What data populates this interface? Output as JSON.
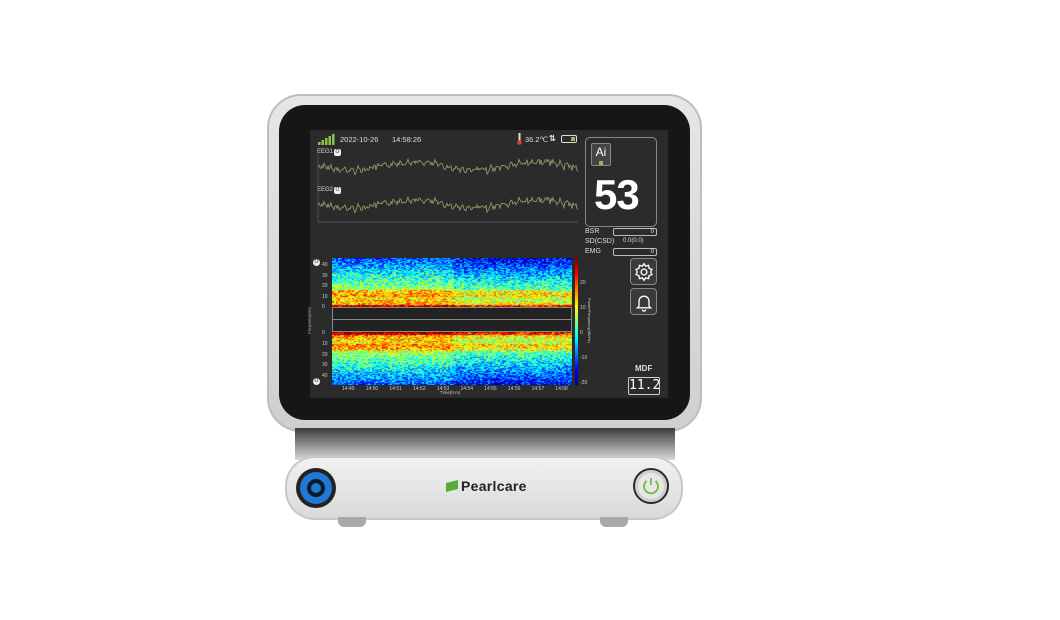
{
  "brand": {
    "name": "Pearlcare",
    "color": "#5aac3a"
  },
  "status_bar": {
    "date": "2022-10-26",
    "time": "14:58:26",
    "temperature": "36.2℃",
    "signal_bars": 5,
    "battery_icon": "battery-icon",
    "transfer_icon": "up-down-arrows-icon"
  },
  "eeg": {
    "channels": [
      {
        "label": "EEG1",
        "badge": "O"
      },
      {
        "label": "EEG2",
        "badge": "O"
      }
    ],
    "trace_color": "#8fa86a"
  },
  "index": {
    "badge": "Ai",
    "value": "53"
  },
  "params": [
    {
      "label": "BSR",
      "value": "0"
    },
    {
      "label": "SD(CSD)",
      "value": "0.0(0.0)"
    },
    {
      "label": "EMG",
      "value": "0"
    }
  ],
  "buttons": {
    "settings": "gear-icon",
    "alarm": "bell-icon"
  },
  "mdf": {
    "label": "MDF",
    "value": "11.2"
  },
  "chart_data": {
    "type": "heatmap",
    "title": "",
    "xlabel": "Time(h:m)",
    "ylabel": "Frequency(Hz)",
    "colorbar_label": "Power/Frequency(dB/Hz)",
    "x_ticks": [
      "14:49",
      "14:50",
      "14:51",
      "14:52",
      "14:53",
      "14:54",
      "14:55",
      "14:56",
      "14:57",
      "14:58"
    ],
    "y_ticks_top": [
      "40",
      "30",
      "20",
      "10",
      "0"
    ],
    "y_ticks_bottom": [
      "0",
      "10",
      "20",
      "30",
      "40"
    ],
    "colorbar_ticks": [
      "20",
      "10",
      "0",
      "-10",
      "-20"
    ],
    "channel_badges": [
      "O",
      "O"
    ],
    "colormap": "jet"
  }
}
